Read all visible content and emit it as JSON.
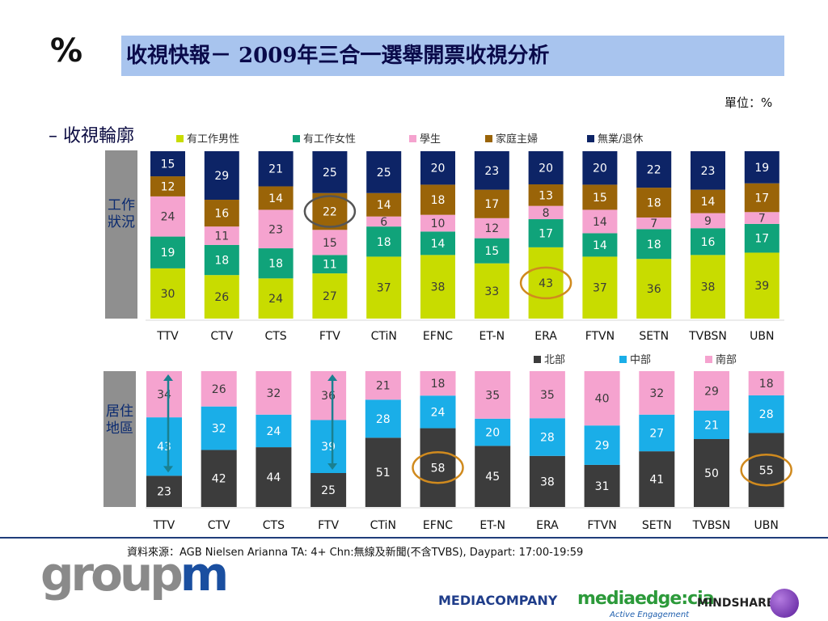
{
  "header": {
    "percent_mark": "%",
    "title": "收視快報－ 2009年三合一選舉開票收視分析",
    "unit": "單位：%",
    "subtitle": "– 收視輪廓"
  },
  "footer": {
    "source": "資料來源：AGB Nielsen Arianna TA: 4+ Chn:無線及新聞(不含TVBS), Daypart: 17:00-19:59",
    "logo_groupm_a": "group",
    "logo_groupm_b": "m",
    "logo_mediacompany": "MEDIACOMPANY",
    "logo_mediaedge": "mediaedge:cia",
    "logo_mediaedge_tag": "Active Engagement",
    "logo_mindshare": "MINDSHARE"
  },
  "colors": {
    "employed_male": "#c8dc00",
    "employed_female": "#10a37a",
    "student": "#f5a3cf",
    "housewife": "#9a6408",
    "unemployed_retired": "#0d2466",
    "north": "#3c3c3c",
    "central": "#1aaee8",
    "south": "#f5a3cf",
    "circle_gray": "#555555",
    "circle_orange": "#d08a1e",
    "arrow": "#1a8090"
  },
  "chart_data": [
    {
      "type": "bar",
      "stacked": true,
      "side_label": "工作狀況",
      "categories": [
        "TTV",
        "CTV",
        "CTS",
        "FTV",
        "CTiN",
        "EFNC",
        "ET-N",
        "ERA",
        "FTVN",
        "SETN",
        "TVBSN",
        "UBN"
      ],
      "series": [
        {
          "name": "有工作男性",
          "color_key": "employed_male",
          "values": [
            30,
            26,
            24,
            27,
            37,
            38,
            33,
            43,
            37,
            36,
            38,
            39
          ]
        },
        {
          "name": "有工作女性",
          "color_key": "employed_female",
          "values": [
            19,
            18,
            18,
            11,
            18,
            14,
            15,
            17,
            14,
            18,
            16,
            17
          ]
        },
        {
          "name": "學生",
          "color_key": "student",
          "values": [
            24,
            11,
            23,
            15,
            6,
            10,
            12,
            8,
            14,
            7,
            9,
            7
          ]
        },
        {
          "name": "家庭主婦",
          "color_key": "housewife",
          "values": [
            12,
            16,
            14,
            22,
            14,
            18,
            17,
            13,
            15,
            18,
            14,
            17
          ]
        },
        {
          "name": "無業/退休",
          "color_key": "unemployed_retired",
          "values": [
            15,
            29,
            21,
            25,
            25,
            20,
            23,
            20,
            20,
            22,
            23,
            19
          ]
        }
      ],
      "highlights": [
        {
          "category": "FTV",
          "series": "家庭主婦",
          "color_key": "circle_gray"
        },
        {
          "category": "ERA",
          "series": "有工作男性",
          "color_key": "circle_orange"
        }
      ]
    },
    {
      "type": "bar",
      "stacked": true,
      "side_label": "居住地區",
      "categories": [
        "TTV",
        "CTV",
        "CTS",
        "FTV",
        "CTiN",
        "EFNC",
        "ET-N",
        "ERA",
        "FTVN",
        "SETN",
        "TVBSN",
        "UBN"
      ],
      "series": [
        {
          "name": "北部",
          "color_key": "north",
          "values": [
            23,
            42,
            44,
            25,
            51,
            58,
            45,
            38,
            31,
            41,
            50,
            55
          ]
        },
        {
          "name": "中部",
          "color_key": "central",
          "values": [
            43,
            32,
            24,
            39,
            28,
            24,
            20,
            28,
            29,
            27,
            21,
            28
          ]
        },
        {
          "name": "南部",
          "color_key": "south",
          "values": [
            34,
            26,
            32,
            36,
            21,
            18,
            35,
            35,
            40,
            32,
            29,
            18
          ]
        }
      ],
      "highlights": [
        {
          "category": "EFNC",
          "series": "北部",
          "color_key": "circle_orange"
        },
        {
          "category": "UBN",
          "series": "北部",
          "color_key": "circle_orange"
        }
      ],
      "arrows": [
        {
          "category": "TTV",
          "from": "中部",
          "to": "南部",
          "color_key": "arrow"
        },
        {
          "category": "FTV",
          "from": "中部",
          "to": "南部",
          "color_key": "arrow"
        }
      ]
    }
  ]
}
